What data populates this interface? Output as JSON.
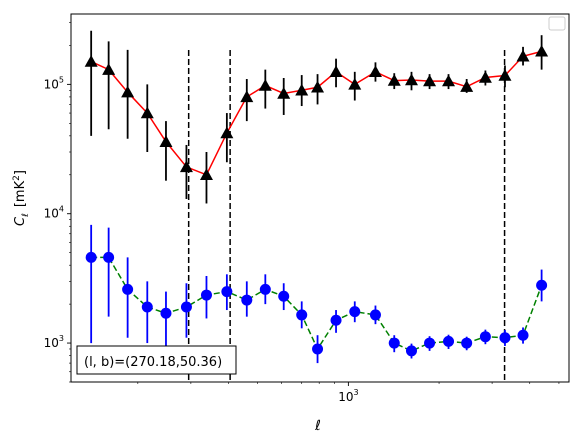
{
  "chart_data": {
    "type": "line",
    "title": "",
    "xlabel": "ℓ",
    "ylabel_main": "C",
    "ylabel_sub": "ℓ",
    "ylabel_unit": "[mK",
    "ylabel_unit_sup": "2",
    "ylabel_unit_close": "]",
    "xscale": "log",
    "yscale": "log",
    "xlim": [
      120,
      5400
    ],
    "ylim": [
      500,
      350000
    ],
    "yticks": [
      {
        "value": 1000,
        "base": "10",
        "exp": "3"
      },
      {
        "value": 10000,
        "base": "10",
        "exp": "4"
      },
      {
        "value": 100000,
        "base": "10",
        "exp": "5"
      }
    ],
    "xticks": [
      {
        "value": 1000,
        "base": "10",
        "exp": "3"
      }
    ],
    "vlines": [
      295,
      405,
      3300
    ],
    "legend": "top-right, empty",
    "annotation": "(l, b)=(270.18,50.36)",
    "series": [
      {
        "color": "#ff0000",
        "marker": "triangle",
        "marker_color": "#000000",
        "errorbar_color": "#000000",
        "linestyle": "solid",
        "x": [
          140,
          160,
          185,
          215,
          248,
          290,
          338,
          395,
          460,
          530,
          610,
          700,
          790,
          910,
          1050,
          1230,
          1420,
          1620,
          1860,
          2150,
          2470,
          2850,
          3310,
          3800,
          4380
        ],
        "y": [
          150000,
          130000,
          87000,
          60000,
          36000,
          23000,
          20000,
          42000,
          80000,
          98000,
          85000,
          90000,
          95000,
          125000,
          100000,
          125000,
          107000,
          108000,
          106000,
          106000,
          96000,
          113000,
          117000,
          165000,
          180000
        ],
        "y_low": [
          40000,
          45000,
          38000,
          30000,
          18000,
          13000,
          12000,
          25000,
          52000,
          65000,
          58000,
          68000,
          70000,
          95000,
          75000,
          105000,
          92000,
          90000,
          92000,
          92000,
          86000,
          98000,
          95000,
          140000,
          130000
        ],
        "y_high": [
          260000,
          215000,
          185000,
          100000,
          52000,
          34000,
          30000,
          60000,
          110000,
          130000,
          112000,
          118000,
          120000,
          158000,
          125000,
          148000,
          122000,
          125000,
          120000,
          120000,
          110000,
          128000,
          140000,
          195000,
          240000
        ]
      },
      {
        "color": "#008000",
        "marker": "circle",
        "marker_color": "#0000ff",
        "errorbar_color": "#0000ff",
        "linestyle": "dashed",
        "x": [
          140,
          160,
          185,
          215,
          248,
          290,
          338,
          395,
          460,
          530,
          610,
          700,
          790,
          910,
          1050,
          1230,
          1420,
          1620,
          1860,
          2150,
          2470,
          2850,
          3310,
          3800,
          4380
        ],
        "y": [
          4600,
          4600,
          2600,
          1900,
          1700,
          1900,
          2350,
          2500,
          2150,
          2600,
          2300,
          1650,
          900,
          1500,
          1750,
          1650,
          1000,
          870,
          1000,
          1030,
          1000,
          1120,
          1100,
          1150,
          2800
        ],
        "y_low": [
          1000,
          1600,
          1100,
          1000,
          900,
          1100,
          1550,
          1800,
          1600,
          2000,
          1800,
          1300,
          700,
          1200,
          1450,
          1400,
          850,
          760,
          870,
          900,
          880,
          980,
          950,
          990,
          2100
        ],
        "y_high": [
          8200,
          7800,
          4600,
          3000,
          2500,
          2900,
          3300,
          3400,
          3000,
          3400,
          2900,
          2100,
          1150,
          1800,
          2100,
          1950,
          1150,
          990,
          1130,
          1160,
          1120,
          1270,
          1260,
          1320,
          3700
        ]
      }
    ]
  }
}
